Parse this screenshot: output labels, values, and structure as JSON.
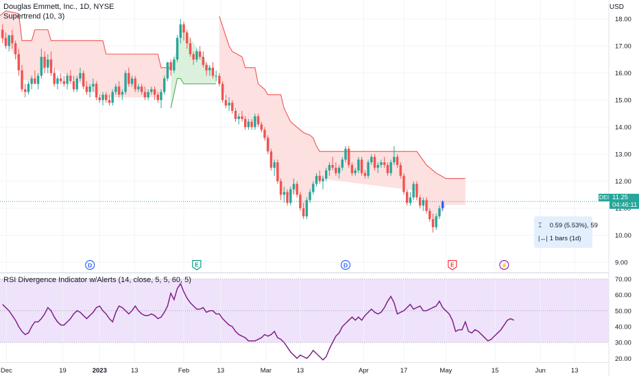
{
  "header": {
    "title": "Douglas Emmett, Inc., 1D, NYSE",
    "indicator": "Supertrend (10, 3)",
    "currency": "USD"
  },
  "rsi_header": "RSI Divergence Indicator w/Alerts (14, close, 5, 5, 60, 5)",
  "price_tag": {
    "symbol": "DEI",
    "price": "11.25",
    "countdown": "04:46:11"
  },
  "measure_tooltip": {
    "change": "0.59 (5.53%), 59",
    "bars": "1 bars (1d)"
  },
  "events": [
    {
      "label": "D",
      "kind": "dividend",
      "bar": 27
    },
    {
      "label": "E",
      "kind": "earnings",
      "bar": 60
    },
    {
      "label": "D",
      "kind": "dividend",
      "bar": 106
    },
    {
      "label": "E",
      "kind": "earnings",
      "bar": 139
    },
    {
      "label": "⚡",
      "kind": "split",
      "bar": 155
    }
  ],
  "colors": {
    "up": "#26a69a",
    "down": "#ef5350",
    "last": "#2962ff",
    "st_down": "#ef5350",
    "st_down_fill": "#fde0e0",
    "st_up": "#4caf50",
    "st_up_fill": "#dcf1dd",
    "rsi": "#7e1f86",
    "rsi_band": "#efe2fb",
    "price_line": "#26a69a"
  },
  "chart_data": [
    {
      "type": "candlestick",
      "y_axis": {
        "ticks": [
          9.0,
          10.0,
          11.0,
          12.0,
          13.0,
          14.0,
          15.0,
          16.0,
          17.0,
          18.0
        ],
        "labels": [
          "9.00",
          "10.00",
          "11.00",
          "12.00",
          "13.00",
          "14.00",
          "15.00",
          "16.00",
          "17.00",
          "18.00"
        ],
        "range": [
          8.7,
          18.6
        ]
      },
      "x_axis": {
        "ticks": [
          {
            "label": "Dec",
            "bar": 1.2
          },
          {
            "label": "19",
            "bar": 18.6
          },
          {
            "label": "2023",
            "bar": 30
          },
          {
            "label": "13",
            "bar": 40.8
          },
          {
            "label": "Feb",
            "bar": 56
          },
          {
            "label": "13",
            "bar": 67.4
          },
          {
            "label": "Mar",
            "bar": 81.4
          },
          {
            "label": "13",
            "bar": 92
          },
          {
            "label": "Apr",
            "bar": 111.6
          },
          {
            "label": "17",
            "bar": 124
          },
          {
            "label": "May",
            "bar": 137
          },
          {
            "label": "15",
            "bar": 152.2
          },
          {
            "label": "Jun",
            "bar": 166.2
          },
          {
            "label": "13",
            "bar": 176.8
          }
        ]
      },
      "ohlc": [
        [
          17.6,
          17.8,
          17.1,
          17.3
        ],
        [
          17.3,
          17.5,
          16.9,
          17.0
        ],
        [
          17.0,
          17.4,
          16.8,
          17.4
        ],
        [
          17.4,
          17.6,
          16.9,
          17.1
        ],
        [
          17.1,
          17.2,
          16.5,
          16.7
        ],
        [
          16.7,
          16.9,
          15.9,
          16.1
        ],
        [
          16.1,
          16.3,
          15.3,
          15.4
        ],
        [
          15.4,
          15.6,
          15.1,
          15.3
        ],
        [
          15.3,
          15.7,
          15.2,
          15.6
        ],
        [
          15.6,
          15.9,
          15.4,
          15.8
        ],
        [
          15.8,
          16.1,
          15.6,
          15.6
        ],
        [
          15.6,
          16.0,
          15.4,
          15.9
        ],
        [
          15.9,
          16.9,
          15.8,
          16.6
        ],
        [
          16.6,
          16.8,
          16.0,
          16.2
        ],
        [
          16.2,
          16.7,
          16.0,
          16.5
        ],
        [
          16.5,
          16.8,
          15.9,
          16.0
        ],
        [
          16.0,
          16.2,
          15.5,
          15.6
        ],
        [
          15.6,
          15.9,
          15.4,
          15.8
        ],
        [
          15.8,
          16.0,
          15.6,
          15.7
        ],
        [
          15.7,
          15.9,
          15.5,
          15.6
        ],
        [
          15.6,
          16.0,
          15.4,
          15.9
        ],
        [
          15.9,
          16.1,
          15.6,
          15.7
        ],
        [
          15.7,
          15.9,
          15.3,
          15.4
        ],
        [
          15.4,
          15.9,
          15.3,
          15.8
        ],
        [
          15.8,
          16.2,
          15.7,
          16.0
        ],
        [
          16.0,
          16.1,
          15.4,
          15.5
        ],
        [
          15.5,
          15.7,
          15.2,
          15.3
        ],
        [
          15.3,
          15.6,
          15.1,
          15.5
        ],
        [
          15.5,
          15.8,
          15.3,
          15.6
        ],
        [
          15.6,
          15.7,
          15.0,
          15.1
        ],
        [
          15.1,
          15.2,
          14.9,
          15.0
        ],
        [
          15.0,
          15.3,
          14.8,
          15.2
        ],
        [
          15.2,
          15.3,
          14.9,
          15.0
        ],
        [
          15.0,
          15.2,
          14.8,
          14.9
        ],
        [
          14.9,
          15.4,
          14.8,
          15.3
        ],
        [
          15.3,
          15.6,
          15.2,
          15.5
        ],
        [
          15.5,
          15.7,
          15.1,
          15.2
        ],
        [
          15.2,
          15.4,
          15.0,
          15.3
        ],
        [
          15.3,
          16.1,
          15.2,
          16.0
        ],
        [
          16.0,
          16.2,
          15.5,
          15.6
        ],
        [
          15.6,
          15.9,
          15.5,
          15.8
        ],
        [
          15.8,
          15.9,
          15.3,
          15.4
        ],
        [
          15.4,
          15.6,
          15.3,
          15.5
        ],
        [
          15.5,
          15.6,
          15.2,
          15.3
        ],
        [
          15.3,
          15.5,
          15.0,
          15.1
        ],
        [
          15.1,
          15.4,
          15.0,
          15.3
        ],
        [
          15.3,
          15.5,
          15.2,
          15.4
        ],
        [
          15.4,
          15.5,
          15.0,
          15.2
        ],
        [
          15.2,
          15.3,
          14.9,
          15.0
        ],
        [
          15.0,
          15.4,
          14.7,
          15.3
        ],
        [
          15.3,
          15.9,
          15.2,
          15.8
        ],
        [
          15.8,
          16.4,
          15.7,
          16.4
        ],
        [
          16.4,
          16.5,
          15.9,
          16.1
        ],
        [
          16.1,
          16.6,
          16.0,
          16.5
        ],
        [
          16.5,
          17.4,
          16.4,
          17.3
        ],
        [
          17.3,
          18.0,
          17.1,
          17.8
        ],
        [
          17.8,
          17.9,
          17.2,
          17.5
        ],
        [
          17.5,
          17.6,
          16.9,
          17.1
        ],
        [
          17.1,
          17.3,
          16.6,
          16.7
        ],
        [
          16.7,
          16.8,
          16.3,
          16.5
        ],
        [
          16.5,
          16.9,
          16.4,
          16.8
        ],
        [
          16.8,
          17.0,
          16.5,
          16.6
        ],
        [
          16.6,
          16.8,
          16.2,
          16.3
        ],
        [
          16.3,
          16.4,
          15.9,
          16.1
        ],
        [
          16.1,
          16.3,
          15.9,
          16.2
        ],
        [
          16.2,
          16.4,
          15.8,
          15.9
        ],
        [
          15.9,
          16.1,
          15.7,
          15.9
        ],
        [
          15.9,
          16.0,
          15.5,
          15.6
        ],
        [
          15.6,
          15.7,
          14.9,
          15.0
        ],
        [
          15.0,
          15.2,
          14.7,
          14.8
        ],
        [
          14.8,
          15.1,
          14.6,
          14.9
        ],
        [
          14.9,
          15.0,
          14.5,
          14.6
        ],
        [
          14.6,
          14.7,
          14.2,
          14.3
        ],
        [
          14.3,
          14.5,
          14.1,
          14.4
        ],
        [
          14.4,
          14.6,
          14.2,
          14.3
        ],
        [
          14.3,
          14.4,
          13.9,
          14.0
        ],
        [
          14.0,
          14.3,
          13.9,
          14.2
        ],
        [
          14.2,
          14.3,
          13.9,
          14.0
        ],
        [
          14.0,
          14.5,
          13.9,
          14.4
        ],
        [
          14.4,
          14.5,
          14.0,
          14.1
        ],
        [
          14.1,
          14.2,
          13.8,
          13.9
        ],
        [
          13.9,
          14.0,
          13.5,
          13.6
        ],
        [
          13.6,
          13.7,
          13.0,
          13.1
        ],
        [
          13.1,
          13.2,
          12.4,
          12.5
        ],
        [
          12.5,
          12.8,
          12.2,
          12.7
        ],
        [
          12.7,
          12.8,
          11.9,
          12.0
        ],
        [
          12.0,
          12.1,
          11.3,
          11.5
        ],
        [
          11.5,
          11.8,
          11.2,
          11.6
        ],
        [
          11.6,
          11.7,
          11.1,
          11.2
        ],
        [
          11.2,
          11.8,
          11.1,
          11.7
        ],
        [
          11.7,
          12.1,
          11.5,
          11.9
        ],
        [
          11.9,
          12.0,
          11.4,
          11.5
        ],
        [
          11.5,
          11.6,
          10.9,
          11.0
        ],
        [
          11.0,
          11.2,
          10.6,
          10.7
        ],
        [
          10.7,
          11.4,
          10.6,
          11.3
        ],
        [
          11.3,
          11.7,
          11.2,
          11.6
        ],
        [
          11.6,
          12.0,
          11.5,
          11.9
        ],
        [
          11.9,
          12.3,
          11.8,
          12.2
        ],
        [
          12.2,
          12.4,
          11.9,
          12.0
        ],
        [
          12.0,
          12.2,
          11.7,
          12.1
        ],
        [
          12.1,
          12.5,
          12.0,
          12.4
        ],
        [
          12.4,
          12.7,
          12.2,
          12.6
        ],
        [
          12.6,
          12.9,
          12.4,
          12.5
        ],
        [
          12.5,
          12.7,
          12.2,
          12.3
        ],
        [
          12.3,
          12.6,
          12.1,
          12.5
        ],
        [
          12.5,
          12.9,
          12.4,
          12.8
        ],
        [
          12.8,
          13.3,
          12.7,
          13.2
        ],
        [
          13.2,
          13.3,
          12.5,
          12.6
        ],
        [
          12.6,
          12.7,
          12.2,
          12.3
        ],
        [
          12.3,
          12.5,
          12.2,
          12.4
        ],
        [
          12.4,
          12.9,
          12.3,
          12.8
        ],
        [
          12.8,
          12.9,
          12.2,
          12.3
        ],
        [
          12.3,
          12.4,
          12.1,
          12.2
        ],
        [
          12.2,
          12.8,
          12.1,
          12.7
        ],
        [
          12.7,
          13.0,
          12.6,
          12.9
        ],
        [
          12.9,
          13.0,
          12.4,
          12.5
        ],
        [
          12.5,
          12.7,
          12.3,
          12.6
        ],
        [
          12.6,
          12.8,
          12.5,
          12.7
        ],
        [
          12.7,
          12.9,
          12.5,
          12.6
        ],
        [
          12.6,
          12.7,
          12.2,
          12.3
        ],
        [
          12.3,
          12.8,
          12.2,
          12.7
        ],
        [
          12.7,
          13.3,
          12.6,
          12.9
        ],
        [
          12.9,
          13.0,
          12.5,
          12.6
        ],
        [
          12.6,
          12.7,
          12.1,
          12.2
        ],
        [
          12.2,
          12.3,
          11.5,
          11.6
        ],
        [
          11.6,
          11.7,
          11.1,
          11.2
        ],
        [
          11.2,
          11.6,
          11.1,
          11.4
        ],
        [
          11.4,
          12.0,
          11.3,
          11.9
        ],
        [
          11.9,
          12.0,
          11.3,
          11.4
        ],
        [
          11.4,
          11.5,
          11.0,
          11.1
        ],
        [
          11.1,
          11.4,
          10.9,
          11.3
        ],
        [
          11.3,
          11.4,
          10.8,
          10.9
        ],
        [
          10.9,
          11.0,
          10.5,
          10.6
        ],
        [
          10.6,
          10.8,
          10.1,
          10.3
        ],
        [
          10.3,
          10.8,
          10.2,
          10.7
        ],
        [
          10.7,
          11.1,
          10.6,
          11.0
        ],
        [
          11.0,
          11.3,
          10.9,
          11.25
        ]
      ],
      "supertrend": [
        {
          "trend": "down",
          "points": [
            [
              -3,
              17.9
            ],
            [
              1,
              18.3
            ],
            [
              5,
              18.2
            ],
            [
              6,
              17.2
            ],
            [
              9,
              17.2
            ],
            [
              10,
              17.6
            ],
            [
              14,
              17.6
            ],
            [
              15,
              17.2
            ],
            [
              31,
              17.2
            ],
            [
              32,
              16.7
            ],
            [
              48,
              16.7
            ],
            [
              49,
              16.2
            ],
            [
              52,
              16.2
            ]
          ]
        },
        {
          "trend": "up",
          "points": [
            [
              52,
              14.7
            ],
            [
              54,
              15.8
            ],
            [
              55,
              15.8
            ],
            [
              56,
              15.6
            ],
            [
              65,
              15.6
            ],
            [
              66,
              15.6
            ]
          ]
        },
        {
          "trend": "down",
          "points": [
            [
              67,
              18.1
            ],
            [
              70,
              17.0
            ],
            [
              71,
              16.8
            ],
            [
              74,
              16.6
            ],
            [
              75,
              16.2
            ],
            [
              78,
              16.2
            ],
            [
              79,
              15.6
            ],
            [
              81,
              15.4
            ],
            [
              82,
              15.2
            ],
            [
              86,
              15.2
            ],
            [
              87,
              14.7
            ],
            [
              89,
              14.2
            ],
            [
              91,
              14.0
            ],
            [
              93,
              13.8
            ],
            [
              95,
              13.7
            ],
            [
              96,
              13.6
            ],
            [
              97,
              13.3
            ],
            [
              98,
              13.1
            ],
            [
              128,
              13.1
            ],
            [
              131,
              12.6
            ],
            [
              132,
              12.5
            ],
            [
              134,
              12.3
            ],
            [
              137,
              12.1
            ],
            [
              143,
              12.1
            ]
          ]
        }
      ]
    },
    {
      "type": "line",
      "title": "RSI Divergence Indicator w/Alerts (14, close, 5, 5, 60, 5)",
      "y_axis": {
        "ticks": [
          20,
          30,
          40,
          50,
          60,
          70
        ],
        "labels": [
          "20.00",
          "30.00",
          "40.00",
          "50.00",
          "60.00",
          "70.00"
        ],
        "range": [
          18,
          71.5
        ]
      },
      "band": [
        30,
        70
      ],
      "midline": 50,
      "rsi": [
        54,
        52,
        50,
        47,
        44,
        40,
        37,
        35,
        36,
        40,
        43,
        43,
        45,
        48,
        52,
        50,
        46,
        43,
        41,
        41,
        43,
        45,
        48,
        50,
        49,
        47,
        45,
        47,
        49,
        52,
        53,
        50,
        48,
        45,
        43,
        49,
        53,
        52,
        50,
        48,
        50,
        53,
        50,
        48,
        47,
        47,
        48,
        47,
        45,
        46,
        49,
        53,
        61,
        57,
        64,
        67,
        62,
        58,
        55,
        53,
        51,
        51,
        52,
        49,
        50,
        50,
        48,
        48,
        45,
        43,
        41,
        40,
        37,
        35,
        34,
        33,
        31,
        31,
        31,
        32,
        33,
        35,
        34,
        35,
        37,
        33,
        32,
        30,
        27,
        24,
        22,
        20,
        22,
        21,
        20,
        22,
        25,
        23,
        21,
        19,
        21,
        26,
        30,
        34,
        36,
        40,
        42,
        44,
        46,
        44,
        46,
        44,
        47,
        49,
        51,
        49,
        48,
        49,
        52,
        56,
        59,
        55,
        48,
        49,
        50,
        52,
        54,
        51,
        52,
        53,
        50,
        50,
        51,
        52,
        53,
        56,
        52,
        50,
        48,
        44,
        37,
        38,
        38,
        43,
        37,
        36,
        38,
        37,
        35,
        33,
        31,
        32,
        34,
        36,
        38,
        41,
        44,
        45,
        44
      ]
    }
  ]
}
